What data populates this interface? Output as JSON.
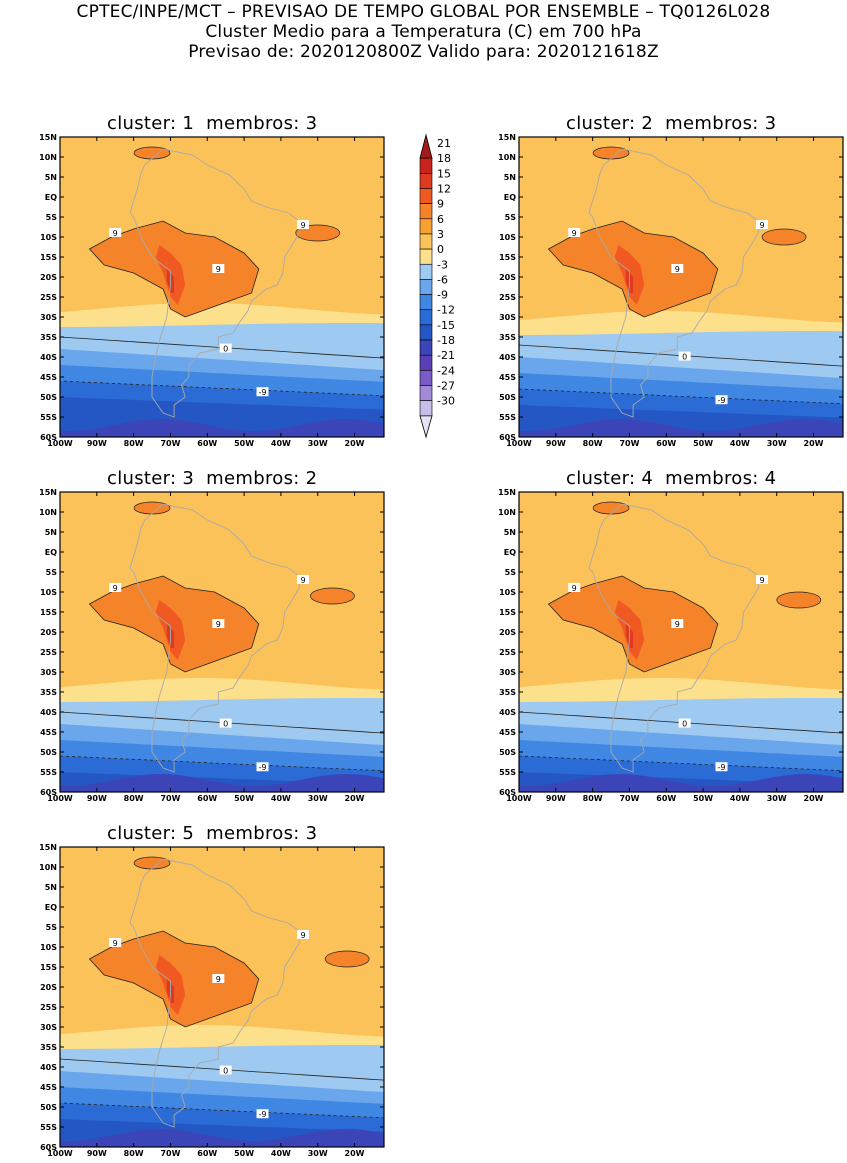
{
  "header": {
    "line1": "CPTEC/INPE/MCT – PREVISAO DE TEMPO GLOBAL POR ENSEMBLE – TQ0126L028",
    "line2": "Cluster Medio para a Temperatura (C) em 700 hPa",
    "line3": "Previsao de: 2020120800Z   Valido para: 2020121618Z"
  },
  "panels": [
    {
      "title": "cluster: 1  membros: 3",
      "freezing_lat": 34
    },
    {
      "title": "cluster: 2  membros: 3",
      "freezing_lat": 36
    },
    {
      "title": "cluster: 3  membros: 2",
      "freezing_lat": 39
    },
    {
      "title": "cluster: 4  membros: 4",
      "freezing_lat": 39
    },
    {
      "title": "cluster: 5  membros: 3",
      "freezing_lat": 37
    }
  ],
  "axes": {
    "lat_ticks": [
      "15N",
      "10N",
      "5N",
      "EQ",
      "5S",
      "10S",
      "15S",
      "20S",
      "25S",
      "30S",
      "35S",
      "40S",
      "45S",
      "50S",
      "55S",
      "60S"
    ],
    "lon_ticks": [
      "100W",
      "90W",
      "80W",
      "70W",
      "60W",
      "50W",
      "40W",
      "30W",
      "20W"
    ]
  },
  "contour_labels": {
    "warm": "9",
    "zero": "0",
    "cold": "-9"
  },
  "colorbar": {
    "labels": [
      "21",
      "18",
      "15",
      "12",
      "9",
      "6",
      "3",
      "0",
      "-3",
      "-6",
      "-9",
      "-12",
      "-15",
      "-18",
      "-21",
      "-24",
      "-27",
      "-30"
    ],
    "colors": [
      "#a31a1a",
      "#c8241d",
      "#dd3a1f",
      "#f05a22",
      "#f5832a",
      "#f7a033",
      "#fbc25a",
      "#fde08c",
      "#9ec9f1",
      "#6aa6ec",
      "#3f87e3",
      "#2b6bd6",
      "#2457c4",
      "#3b45b8",
      "#5a3fb6",
      "#7a5cc8",
      "#a18bd9",
      "#c9bde9",
      "#e8e2f5"
    ]
  }
}
